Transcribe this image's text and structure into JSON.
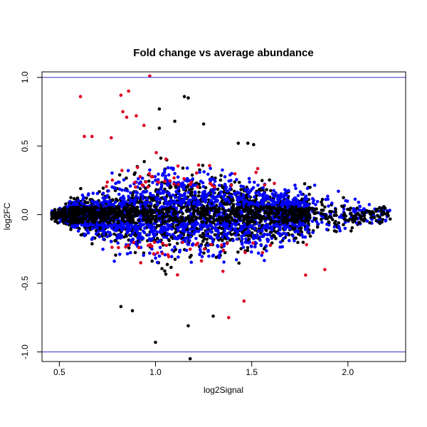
{
  "chart_data": {
    "type": "scatter",
    "title": "Fold change vs average abundance",
    "xlabel": "log2Signal",
    "ylabel": "log2FC",
    "xlim": [
      0.41,
      2.3
    ],
    "ylim": [
      -1.07,
      1.04
    ],
    "xticks": [
      {
        "value": 0.5,
        "label": "0.5"
      },
      {
        "value": 1.0,
        "label": "1.0"
      },
      {
        "value": 1.5,
        "label": "1.5"
      },
      {
        "value": 2.0,
        "label": "2.0"
      }
    ],
    "yticks": [
      {
        "value": -1.0,
        "label": "-1.0"
      },
      {
        "value": -0.5,
        "label": "-0.5"
      },
      {
        "value": 0.0,
        "label": "0.0"
      },
      {
        "value": 0.5,
        "label": "0.5"
      },
      {
        "value": 1.0,
        "label": "1.0"
      }
    ],
    "hlines": [
      {
        "value": 1.0,
        "color": "#3333cc"
      },
      {
        "value": -1.0,
        "color": "#3333cc"
      }
    ],
    "grid": false,
    "legend": "none",
    "series_colors": {
      "base": "#000000",
      "mid": "#0000ff",
      "significant": "#dd0022"
    },
    "outliers": [
      {
        "x": 0.97,
        "y": 1.01,
        "color": "#dd0022"
      },
      {
        "x": 0.61,
        "y": 0.86,
        "color": "#dd0022"
      },
      {
        "x": 0.86,
        "y": 0.9,
        "color": "#dd0022"
      },
      {
        "x": 0.82,
        "y": 0.87,
        "color": "#dd0022"
      },
      {
        "x": 0.63,
        "y": 0.57,
        "color": "#dd0022"
      },
      {
        "x": 0.67,
        "y": 0.57,
        "color": "#dd0022"
      },
      {
        "x": 0.77,
        "y": 0.56,
        "color": "#dd0022"
      },
      {
        "x": 0.83,
        "y": 0.75,
        "color": "#dd0022"
      },
      {
        "x": 0.85,
        "y": 0.71,
        "color": "#dd0022"
      },
      {
        "x": 0.9,
        "y": 0.72,
        "color": "#dd0022"
      },
      {
        "x": 0.94,
        "y": 0.65,
        "color": "#dd0022"
      },
      {
        "x": 1.02,
        "y": 0.77,
        "color": "#000000"
      },
      {
        "x": 1.15,
        "y": 0.86,
        "color": "#000000"
      },
      {
        "x": 1.17,
        "y": 0.85,
        "color": "#000000"
      },
      {
        "x": 1.02,
        "y": 0.63,
        "color": "#000000"
      },
      {
        "x": 1.25,
        "y": 0.66,
        "color": "#000000"
      },
      {
        "x": 1.1,
        "y": 0.68,
        "color": "#000000"
      },
      {
        "x": 1.0,
        "y": -0.93,
        "color": "#000000"
      },
      {
        "x": 1.17,
        "y": -0.81,
        "color": "#000000"
      },
      {
        "x": 1.18,
        "y": -1.05,
        "color": "#000000"
      },
      {
        "x": 1.38,
        "y": -0.75,
        "color": "#dd0022"
      },
      {
        "x": 1.46,
        "y": -0.63,
        "color": "#dd0022"
      },
      {
        "x": 1.3,
        "y": -0.74,
        "color": "#000000"
      },
      {
        "x": 0.82,
        "y": -0.67,
        "color": "#000000"
      },
      {
        "x": 0.88,
        "y": -0.7,
        "color": "#000000"
      },
      {
        "x": 1.78,
        "y": -0.44,
        "color": "#dd0022"
      },
      {
        "x": 1.88,
        "y": -0.4,
        "color": "#dd0022"
      },
      {
        "x": 1.43,
        "y": 0.52,
        "color": "#000000"
      },
      {
        "x": 1.51,
        "y": 0.51,
        "color": "#000000"
      },
      {
        "x": 1.48,
        "y": 0.52,
        "color": "#000000"
      }
    ]
  }
}
